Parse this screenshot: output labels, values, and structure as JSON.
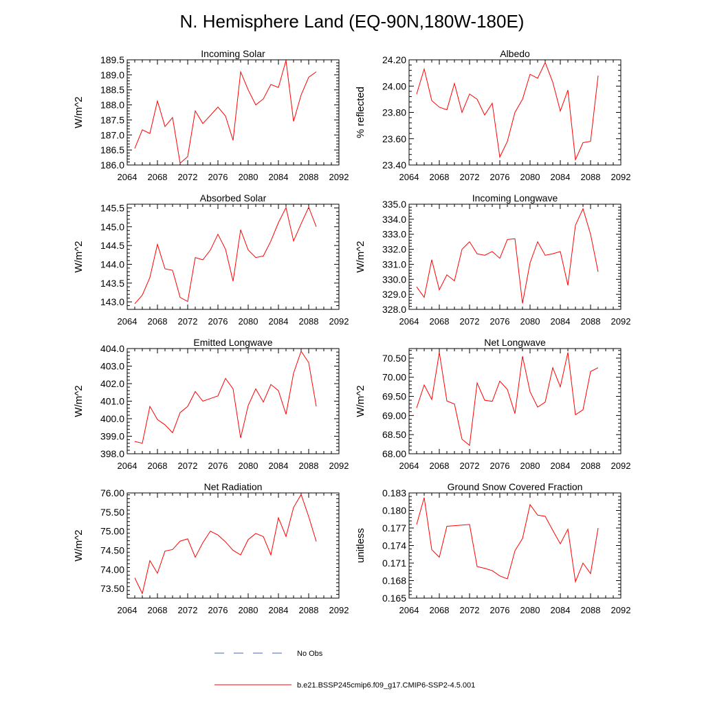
{
  "figure": {
    "title": "N. Hemisphere Land (EQ-90N,180W-180E)"
  },
  "legend": {
    "items": [
      {
        "label": "No Obs",
        "color": "#4466bb",
        "style": "dashed"
      },
      {
        "label": "b.e21.BSSP245cmip6.f09_g17.CMIP6-SSP2-4.5.001",
        "color": "#ff0000",
        "style": "solid"
      }
    ]
  },
  "chart_data": [
    {
      "type": "line",
      "title": "Incoming Solar",
      "ylabel": "W/m^2",
      "xlim": [
        2064,
        2092
      ],
      "ylim": [
        186.0,
        189.5
      ],
      "xticks": [
        "2064",
        "2068",
        "2072",
        "2076",
        "2080",
        "2084",
        "2088",
        "2092"
      ],
      "yticks": [
        "186.0",
        "186.5",
        "187.0",
        "187.5",
        "188.0",
        "188.5",
        "189.0",
        "189.5"
      ],
      "x": [
        2065,
        2066,
        2067,
        2068,
        2069,
        2070,
        2071,
        2072,
        2073,
        2074,
        2075,
        2076,
        2077,
        2078,
        2079,
        2080,
        2081,
        2082,
        2083,
        2084,
        2085,
        2086,
        2087,
        2088,
        2089
      ],
      "series": [
        {
          "name": "b.e21.BSSP245cmip6.f09_g17.CMIP6-SSP2-4.5.001",
          "color": "#ff0000",
          "values": [
            186.55,
            187.17,
            187.05,
            188.13,
            187.28,
            187.58,
            186.06,
            186.28,
            187.8,
            187.38,
            187.65,
            187.93,
            187.63,
            186.82,
            189.1,
            188.5,
            188.0,
            188.2,
            188.68,
            188.58,
            189.48,
            187.45,
            188.33,
            188.92,
            189.1
          ]
        }
      ]
    },
    {
      "type": "line",
      "title": "Albedo",
      "ylabel": "% reflected",
      "xlim": [
        2064,
        2092
      ],
      "ylim": [
        23.4,
        24.2
      ],
      "xticks": [
        "2064",
        "2068",
        "2072",
        "2076",
        "2080",
        "2084",
        "2088",
        "2092"
      ],
      "yticks": [
        "23.40",
        "23.60",
        "23.80",
        "24.00",
        "24.20"
      ],
      "x": [
        2065,
        2066,
        2067,
        2068,
        2069,
        2070,
        2071,
        2072,
        2073,
        2074,
        2075,
        2076,
        2077,
        2078,
        2079,
        2080,
        2081,
        2082,
        2083,
        2084,
        2085,
        2086,
        2087,
        2088,
        2089
      ],
      "series": [
        {
          "name": "b.e21.BSSP245cmip6.f09_g17.CMIP6-SSP2-4.5.001",
          "color": "#ff0000",
          "values": [
            23.94,
            24.13,
            23.89,
            23.84,
            23.82,
            24.02,
            23.8,
            23.94,
            23.9,
            23.78,
            23.87,
            23.46,
            23.58,
            23.8,
            23.9,
            24.09,
            24.06,
            24.18,
            24.03,
            23.81,
            23.97,
            23.44,
            23.57,
            23.58,
            24.08
          ]
        }
      ]
    },
    {
      "type": "line",
      "title": "Absorbed Solar",
      "ylabel": "W/m^2",
      "xlim": [
        2064,
        2092
      ],
      "ylim": [
        142.8,
        145.6
      ],
      "xticks": [
        "2064",
        "2068",
        "2072",
        "2076",
        "2080",
        "2084",
        "2088",
        "2092"
      ],
      "yticks": [
        "143.0",
        "143.5",
        "144.0",
        "144.5",
        "145.0",
        "145.5"
      ],
      "x": [
        2065,
        2066,
        2067,
        2068,
        2069,
        2070,
        2071,
        2072,
        2073,
        2074,
        2075,
        2076,
        2077,
        2078,
        2079,
        2080,
        2081,
        2082,
        2083,
        2084,
        2085,
        2086,
        2087,
        2088,
        2089
      ],
      "series": [
        {
          "name": "b.e21.BSSP245cmip6.f09_g17.CMIP6-SSP2-4.5.001",
          "color": "#ff0000",
          "values": [
            142.95,
            143.18,
            143.65,
            144.53,
            143.88,
            143.84,
            143.12,
            143.01,
            144.18,
            144.12,
            144.38,
            144.8,
            144.4,
            143.55,
            144.92,
            144.38,
            144.18,
            144.22,
            144.62,
            145.11,
            145.51,
            144.62,
            145.08,
            145.52,
            145.0
          ]
        }
      ]
    },
    {
      "type": "line",
      "title": "Incoming Longwave",
      "ylabel": "W/m^2",
      "xlim": [
        2064,
        2092
      ],
      "ylim": [
        328.0,
        335.0
      ],
      "xticks": [
        "2064",
        "2068",
        "2072",
        "2076",
        "2080",
        "2084",
        "2088",
        "2092"
      ],
      "yticks": [
        "328.0",
        "329.0",
        "330.0",
        "331.0",
        "332.0",
        "333.0",
        "334.0",
        "335.0"
      ],
      "x": [
        2065,
        2066,
        2067,
        2068,
        2069,
        2070,
        2071,
        2072,
        2073,
        2074,
        2075,
        2076,
        2077,
        2078,
        2079,
        2080,
        2081,
        2082,
        2083,
        2084,
        2085,
        2086,
        2087,
        2088,
        2089
      ],
      "series": [
        {
          "name": "b.e21.BSSP245cmip6.f09_g17.CMIP6-SSP2-4.5.001",
          "color": "#ff0000",
          "values": [
            329.5,
            328.8,
            331.3,
            329.3,
            330.3,
            329.9,
            332.0,
            332.5,
            331.7,
            331.6,
            331.85,
            331.4,
            332.65,
            332.7,
            328.4,
            331.1,
            332.5,
            331.6,
            331.7,
            331.85,
            329.6,
            333.6,
            334.7,
            333.0,
            330.5
          ]
        }
      ]
    },
    {
      "type": "line",
      "title": "Emitted Longwave",
      "ylabel": "W/m^2",
      "xlim": [
        2064,
        2092
      ],
      "ylim": [
        398.0,
        404.0
      ],
      "xticks": [
        "2064",
        "2068",
        "2072",
        "2076",
        "2080",
        "2084",
        "2088",
        "2092"
      ],
      "yticks": [
        "398.0",
        "399.0",
        "400.0",
        "401.0",
        "402.0",
        "403.0",
        "404.0"
      ],
      "x": [
        2065,
        2066,
        2067,
        2068,
        2069,
        2070,
        2071,
        2072,
        2073,
        2074,
        2075,
        2076,
        2077,
        2078,
        2079,
        2080,
        2081,
        2082,
        2083,
        2084,
        2085,
        2086,
        2087,
        2088,
        2089
      ],
      "series": [
        {
          "name": "b.e21.BSSP245cmip6.f09_g17.CMIP6-SSP2-4.5.001",
          "color": "#ff0000",
          "values": [
            398.7,
            398.6,
            400.7,
            399.95,
            399.65,
            399.2,
            400.35,
            400.7,
            401.55,
            401.0,
            401.15,
            401.3,
            402.3,
            401.7,
            398.9,
            400.75,
            401.7,
            400.95,
            401.95,
            401.6,
            400.25,
            402.6,
            403.85,
            403.2,
            400.7
          ]
        }
      ]
    },
    {
      "type": "line",
      "title": "Net Longwave",
      "ylabel": "W/m^2",
      "xlim": [
        2064,
        2092
      ],
      "ylim": [
        68.0,
        70.75
      ],
      "xticks": [
        "2064",
        "2068",
        "2072",
        "2076",
        "2080",
        "2084",
        "2088",
        "2092"
      ],
      "yticks": [
        "68.00",
        "68.50",
        "69.00",
        "69.50",
        "70.00",
        "70.50"
      ],
      "x": [
        2065,
        2066,
        2067,
        2068,
        2069,
        2070,
        2071,
        2072,
        2073,
        2074,
        2075,
        2076,
        2077,
        2078,
        2079,
        2080,
        2081,
        2082,
        2083,
        2084,
        2085,
        2086,
        2087,
        2088,
        2089
      ],
      "series": [
        {
          "name": "b.e21.BSSP245cmip6.f09_g17.CMIP6-SSP2-4.5.001",
          "color": "#ff0000",
          "values": [
            69.2,
            69.8,
            69.42,
            70.65,
            69.38,
            69.3,
            68.38,
            68.22,
            69.85,
            69.4,
            69.37,
            69.9,
            69.68,
            69.05,
            70.55,
            69.62,
            69.22,
            69.35,
            70.25,
            69.75,
            70.65,
            69.02,
            69.15,
            70.15,
            70.25
          ]
        }
      ]
    },
    {
      "type": "line",
      "title": "Net Radiation",
      "ylabel": "W/m^2",
      "xlim": [
        2064,
        2092
      ],
      "ylim": [
        73.25,
        76.0
      ],
      "xticks": [
        "2064",
        "2068",
        "2072",
        "2076",
        "2080",
        "2084",
        "2088",
        "2092"
      ],
      "yticks": [
        "73.50",
        "74.00",
        "74.50",
        "75.00",
        "75.50",
        "76.00"
      ],
      "x": [
        2065,
        2066,
        2067,
        2068,
        2069,
        2070,
        2071,
        2072,
        2073,
        2074,
        2075,
        2076,
        2077,
        2078,
        2079,
        2080,
        2081,
        2082,
        2083,
        2084,
        2085,
        2086,
        2087,
        2088,
        2089
      ],
      "series": [
        {
          "name": "b.e21.BSSP245cmip6.f09_g17.CMIP6-SSP2-4.5.001",
          "color": "#ff0000",
          "values": [
            73.78,
            73.37,
            74.23,
            73.9,
            74.48,
            74.52,
            74.74,
            74.8,
            74.32,
            74.7,
            75.0,
            74.9,
            74.72,
            74.5,
            74.38,
            74.78,
            74.94,
            74.86,
            74.38,
            75.35,
            74.86,
            75.62,
            75.96,
            75.38,
            74.73
          ]
        }
      ]
    },
    {
      "type": "line",
      "title": "Ground Snow Covered Fraction",
      "ylabel": "unitless",
      "xlim": [
        2064,
        2092
      ],
      "ylim": [
        0.165,
        0.183
      ],
      "xticks": [
        "2064",
        "2068",
        "2072",
        "2076",
        "2080",
        "2084",
        "2088",
        "2092"
      ],
      "yticks": [
        "0.165",
        "0.168",
        "0.171",
        "0.174",
        "0.177",
        "0.180",
        "0.183"
      ],
      "x": [
        2065,
        2066,
        2067,
        2068,
        2069,
        2070,
        2071,
        2072,
        2073,
        2074,
        2075,
        2076,
        2077,
        2078,
        2079,
        2080,
        2081,
        2082,
        2083,
        2084,
        2085,
        2086,
        2087,
        2088,
        2089
      ],
      "series": [
        {
          "name": "b.e21.BSSP245cmip6.f09_g17.CMIP6-SSP2-4.5.001",
          "color": "#ff0000",
          "values": [
            0.1776,
            0.1822,
            0.1733,
            0.172,
            0.1773,
            0.1774,
            0.1775,
            0.1776,
            0.1704,
            0.1701,
            0.1697,
            0.1688,
            0.1683,
            0.1731,
            0.1752,
            0.181,
            0.1792,
            0.179,
            0.1766,
            0.1743,
            0.1768,
            0.1678,
            0.171,
            0.1692,
            0.177
          ]
        }
      ]
    }
  ]
}
